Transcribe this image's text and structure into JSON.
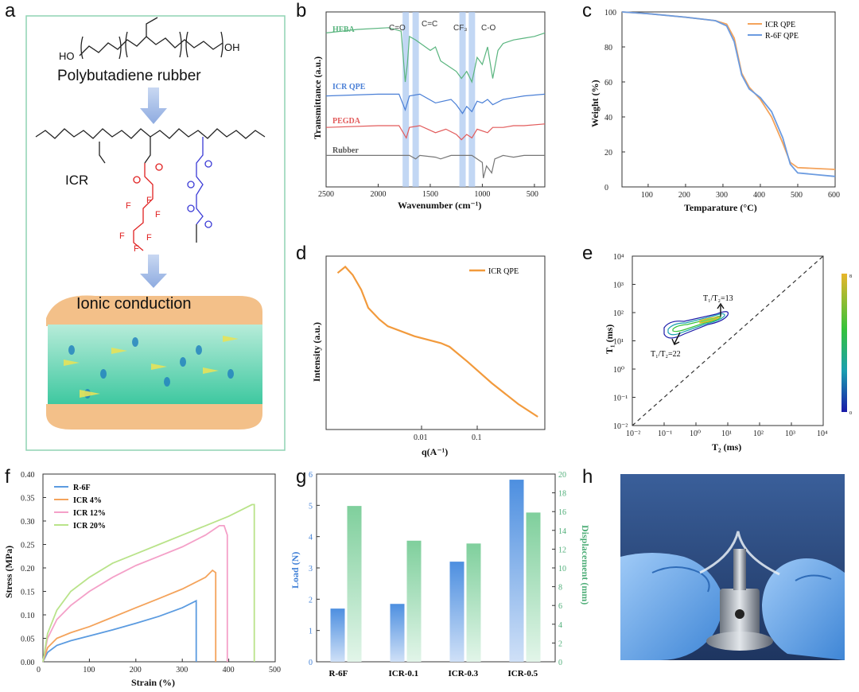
{
  "panels": {
    "a": {
      "label": "a",
      "ho_left": "HO",
      "oh_right": "OH",
      "rubber_title": "Polybutadiene rubber",
      "icr_label": "ICR",
      "fluoro_f": "F",
      "ionic_title": "Ionic conduction",
      "frame_color": "#8fd3b3"
    },
    "b": {
      "label": "b",
      "ylabel": "Transmittance (a.u.)",
      "xlabel": "Wavenumber (cm⁻¹)",
      "band_labels": [
        "C=O",
        "C=C",
        "CF₃",
        "C-O"
      ],
      "chart_data": {
        "type": "line",
        "x_ticks": [
          2500,
          2000,
          1500,
          1000,
          500
        ],
        "xlim": [
          2500,
          400
        ],
        "band_centers": [
          1735,
          1640,
          1190,
          1100
        ],
        "series": [
          {
            "name": "HFBA",
            "color": "#5ab57f",
            "x": [
              2500,
              2200,
              1900,
              1780,
              1740,
              1720,
              1700,
              1640,
              1500,
              1450,
              1400,
              1300,
              1250,
              1200,
              1150,
              1100,
              1050,
              1000,
              950,
              900,
              850,
              800,
              700,
              600,
              500,
              400
            ],
            "y": [
              88,
              90,
              91,
              89,
              60,
              70,
              86,
              84,
              78,
              80,
              72,
              68,
              66,
              62,
              66,
              60,
              74,
              70,
              80,
              62,
              78,
              82,
              84,
              85,
              86,
              88
            ]
          },
          {
            "name": "ICR QPE",
            "color": "#4a7fd6",
            "x": [
              2500,
              2000,
              1800,
              1740,
              1700,
              1600,
              1450,
              1300,
              1250,
              1190,
              1150,
              1100,
              1050,
              1000,
              950,
              900,
              800,
              700,
              600,
              400
            ],
            "y": [
              52,
              53,
              53,
              44,
              52,
              53,
              48,
              50,
              47,
              42,
              46,
              43,
              49,
              48,
              50,
              47,
              50,
              51,
              52,
              53
            ]
          },
          {
            "name": "PEGDA",
            "color": "#e25b5b",
            "x": [
              2500,
              2000,
              1800,
              1730,
              1700,
              1600,
              1450,
              1350,
              1250,
              1200,
              1150,
              1100,
              1050,
              950,
              900,
              800,
              700,
              600,
              400
            ],
            "y": [
              34,
              35,
              35,
              28,
              34,
              35,
              31,
              33,
              30,
              27,
              30,
              28,
              33,
              31,
              34,
              34,
              35,
              35,
              36
            ]
          },
          {
            "name": "Rubber",
            "color": "#777777",
            "x": [
              2500,
              2000,
              1700,
              1640,
              1600,
              1450,
              1400,
              1300,
              1100,
              1000,
              990,
              960,
              910,
              880,
              800,
              700,
              600,
              400
            ],
            "y": [
              18,
              18,
              18,
              16,
              18,
              17,
              16,
              18,
              18,
              14,
              5,
              12,
              8,
              16,
              18,
              17,
              18,
              18
            ]
          }
        ]
      }
    },
    "c": {
      "label": "c",
      "ylabel": "Weight (%)",
      "xlabel": "Temparature (°C)",
      "chart_data": {
        "type": "line",
        "xlim": [
          30,
          600
        ],
        "ylim": [
          0,
          100
        ],
        "x_ticks": [
          100,
          200,
          300,
          400,
          500,
          600
        ],
        "y_ticks": [
          0,
          20,
          40,
          60,
          80,
          100
        ],
        "series": [
          {
            "name": "ICR QPE",
            "color": "#f4a35b",
            "x": [
              30,
              100,
              200,
              280,
              310,
              330,
              350,
              370,
              400,
              430,
              460,
              480,
              500,
              550,
              600
            ],
            "y": [
              100,
              99,
              97,
              95,
              93,
              85,
              65,
              57,
              50,
              40,
              25,
              14,
              11,
              10.5,
              10
            ]
          },
          {
            "name": "R-6F QPE",
            "color": "#6b9be0",
            "x": [
              30,
              100,
              200,
              280,
              310,
              330,
              350,
              370,
              400,
              430,
              460,
              480,
              500,
              550,
              600
            ],
            "y": [
              100,
              99,
              97,
              95,
              92,
              83,
              64,
              56,
              51,
              43,
              28,
              13,
              8,
              7,
              6
            ]
          }
        ]
      }
    },
    "d": {
      "label": "d",
      "ylabel": "Intensity (a.u.)",
      "xlabel": "q(A⁻¹)",
      "chart_data": {
        "type": "line",
        "x_tick_labels": [
          "0.01",
          "0.1"
        ],
        "series": [
          {
            "name": "ICR QPE",
            "color": "#f29a3c",
            "x": [
              0.0027,
              0.0033,
              0.004,
              0.005,
              0.006,
              0.008,
              0.01,
              0.02,
              0.04,
              0.05,
              0.08,
              0.15,
              0.3,
              0.5
            ],
            "y": [
              100,
              140,
              90,
              40,
              15,
              8,
              5.5,
              3.2,
              2.2,
              1.8,
              0.8,
              0.25,
              0.08,
              0.04
            ]
          }
        ]
      }
    },
    "e": {
      "label": "e",
      "ylabel": "T₁ (ms)",
      "xlabel": "T₂ (ms)",
      "annot1": "T₁/T₂=13",
      "annot2": "T₁/T₂=22",
      "colorbar_max": "8",
      "colorbar_min": "0",
      "tick_labels": [
        "10⁻²",
        "10⁻¹",
        "10⁰",
        "10¹",
        "10²",
        "10³",
        "10⁴"
      ]
    },
    "f": {
      "label": "f",
      "ylabel": "Stress (MPa)",
      "xlabel": "Strain (%)",
      "chart_data": {
        "type": "line",
        "xlim": [
          0,
          500
        ],
        "ylim": [
          0,
          0.4
        ],
        "x_ticks": [
          0,
          100,
          200,
          300,
          400,
          500
        ],
        "y_ticks": [
          0.0,
          0.05,
          0.1,
          0.15,
          0.2,
          0.25,
          0.3,
          0.35,
          0.4
        ],
        "series": [
          {
            "name": "R-6F",
            "color": "#5b9be0",
            "x": [
              0,
              10,
              30,
              60,
              100,
              150,
              200,
              250,
              300,
              330,
              330
            ],
            "y": [
              0,
              0.02,
              0.035,
              0.045,
              0.055,
              0.068,
              0.082,
              0.097,
              0.115,
              0.13,
              0
            ]
          },
          {
            "name": "ICR 4%",
            "color": "#f4a35b",
            "x": [
              0,
              10,
              30,
              60,
              100,
              150,
              200,
              250,
              300,
              350,
              365,
              372,
              372
            ],
            "y": [
              0,
              0.03,
              0.05,
              0.062,
              0.075,
              0.095,
              0.115,
              0.135,
              0.155,
              0.18,
              0.195,
              0.19,
              0
            ]
          },
          {
            "name": "ICR 12%",
            "color": "#f4a0c8",
            "x": [
              0,
              10,
              30,
              60,
              100,
              150,
              200,
              250,
              300,
              350,
              380,
              390,
              397,
              397
            ],
            "y": [
              0,
              0.05,
              0.09,
              0.12,
              0.15,
              0.18,
              0.205,
              0.225,
              0.245,
              0.27,
              0.29,
              0.29,
              0.27,
              0
            ]
          },
          {
            "name": "ICR 20%",
            "color": "#b9e38a",
            "x": [
              0,
              10,
              30,
              60,
              100,
              150,
              200,
              250,
              300,
              350,
              400,
              450,
              455,
              455
            ],
            "y": [
              0,
              0.06,
              0.11,
              0.15,
              0.18,
              0.21,
              0.23,
              0.25,
              0.27,
              0.29,
              0.31,
              0.335,
              0.335,
              0
            ]
          }
        ]
      }
    },
    "g": {
      "label": "g",
      "ylabel_left": "Load (N)",
      "ylabel_right": "Displacement (mm)",
      "chart_data": {
        "type": "bar",
        "categories": [
          "R-6F",
          "ICR-0.1",
          "ICR-0.3",
          "ICR-0.5"
        ],
        "series": [
          {
            "name": "Load (N)",
            "axis": "left",
            "color": "#5b9be0",
            "values": [
              1.7,
              1.85,
              3.2,
              5.82
            ]
          },
          {
            "name": "Displacement (mm)",
            "axis": "right",
            "color": "#7fcf9c",
            "values": [
              16.6,
              12.9,
              12.6,
              15.9
            ]
          }
        ],
        "ylim_left": [
          0,
          6
        ],
        "ylim_right": [
          0,
          20
        ],
        "y_ticks_left": [
          0,
          1,
          2,
          3,
          4,
          5,
          6
        ],
        "y_ticks_right": [
          0,
          2,
          4,
          6,
          8,
          10,
          12,
          14,
          16,
          18,
          20
        ]
      }
    },
    "h": {
      "label": "h"
    }
  }
}
